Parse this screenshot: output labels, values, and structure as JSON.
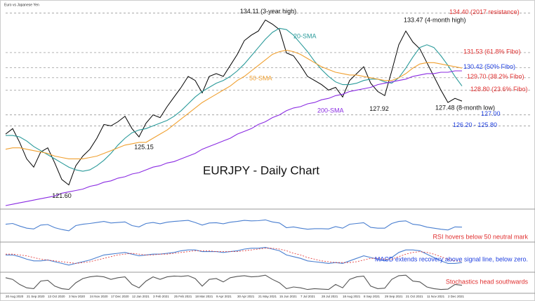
{
  "chart_data": [
    {
      "type": "line",
      "title": "EURJPY - Daily Chart",
      "subtitle": "Euro vs Japanese Yen",
      "color": "#000000",
      "categories": [
        "20 Aug 2020",
        null,
        null,
        "21 Sep 2020",
        null,
        null,
        "13 Oct 2020",
        null,
        null,
        "3 Nov 2020",
        null,
        null,
        "24 Nov 2020",
        null,
        null,
        "17 Dec 2020",
        null,
        null,
        "12 Jan 2021",
        null,
        null,
        "3 Feb 2021",
        null,
        null,
        "25 Feb 2021",
        null,
        null,
        "18 Mar 2021",
        null,
        null,
        "9 Apr 2021",
        null,
        null,
        "30 Apr 2021",
        null,
        null,
        "21 May 2021",
        null,
        null,
        "15 Jun 2021",
        null,
        null,
        "7 Jul 2021",
        null,
        null,
        "28 Jul 2021",
        null,
        null,
        "18 Aug 2021",
        null,
        null,
        "8 Sep 2021",
        null,
        null,
        "29 Sep 2021",
        null,
        null,
        "21 Oct 2021",
        null,
        null,
        "11 Nov 2021",
        null,
        null,
        "2 Dec 2021",
        null,
        null
      ],
      "values": [
        125.6,
        126.0,
        125.0,
        123.8,
        123.2,
        124.3,
        124.6,
        123.5,
        122.3,
        121.9,
        123.3,
        124.0,
        124.5,
        125.3,
        126.3,
        126.2,
        126.5,
        126.9,
        126.0,
        125.4,
        126.4,
        127.0,
        126.8,
        127.6,
        128.3,
        129.0,
        129.8,
        129.5,
        128.6,
        129.8,
        130.0,
        129.8,
        130.6,
        131.4,
        132.4,
        132.8,
        133.1,
        133.9,
        133.6,
        133.2,
        131.5,
        131.3,
        130.6,
        129.8,
        129.5,
        129.2,
        128.8,
        129.0,
        128.3,
        129.5,
        130.0,
        130.5,
        129.3,
        128.7,
        128.4,
        130.2,
        132.1,
        133.1,
        132.3,
        131.8,
        130.8,
        129.8,
        128.8,
        127.9,
        128.2,
        128.0
      ],
      "series": [
        {
          "name": "20-SMA",
          "color": "#2a9a9a",
          "values": [
            125.5,
            125.5,
            125.4,
            125.1,
            124.7,
            124.4,
            124.1,
            123.8,
            123.5,
            123.2,
            123.0,
            122.9,
            123.0,
            123.3,
            123.7,
            124.2,
            124.8,
            125.3,
            125.7,
            125.9,
            126.0,
            126.2,
            126.4,
            126.6,
            126.9,
            127.3,
            127.8,
            128.3,
            128.7,
            129.0,
            129.3,
            129.5,
            129.8,
            130.2,
            130.7,
            131.3,
            131.9,
            132.5,
            133.0,
            133.3,
            133.2,
            132.8,
            132.2,
            131.6,
            130.9,
            130.3,
            129.8,
            129.4,
            129.2,
            129.2,
            129.3,
            129.5,
            129.6,
            129.6,
            129.4,
            129.3,
            129.7,
            130.4,
            131.2,
            131.9,
            132.1,
            131.9,
            131.3,
            130.6,
            129.8,
            129.1
          ]
        },
        {
          "name": "50-SMA",
          "color": "#f0a030",
          "values": [
            124.5,
            124.6,
            124.6,
            124.5,
            124.4,
            124.3,
            124.2,
            124.0,
            123.9,
            123.8,
            123.8,
            123.8,
            123.9,
            124.0,
            124.2,
            124.4,
            124.6,
            124.8,
            124.9,
            125.0,
            125.0,
            125.3,
            125.6,
            125.9,
            126.3,
            126.7,
            127.1,
            127.5,
            127.9,
            128.2,
            128.5,
            128.8,
            129.1,
            129.5,
            129.8,
            130.2,
            130.6,
            131.0,
            131.4,
            131.6,
            131.7,
            131.6,
            131.4,
            131.1,
            130.8,
            130.5,
            130.3,
            130.1,
            130.0,
            129.9,
            129.9,
            129.8,
            129.7,
            129.6,
            129.5,
            129.5,
            129.7,
            130.0,
            130.4,
            130.7,
            130.8,
            130.8,
            130.7,
            130.6,
            130.5,
            130.4
          ]
        },
        {
          "name": "200-SMA",
          "color": "#8a2be2",
          "values": [
            120.4,
            120.5,
            120.6,
            120.7,
            120.8,
            120.9,
            121.0,
            121.1,
            121.3,
            121.4,
            121.5,
            121.6,
            121.8,
            121.9,
            122.1,
            122.2,
            122.4,
            122.5,
            122.7,
            122.8,
            123.0,
            123.2,
            123.3,
            123.5,
            123.6,
            123.8,
            124.0,
            124.2,
            124.5,
            124.7,
            124.9,
            125.1,
            125.3,
            125.6,
            125.8,
            126.0,
            126.3,
            126.5,
            126.8,
            127.0,
            127.3,
            127.5,
            127.6,
            127.8,
            127.9,
            128.1,
            128.2,
            128.4,
            128.5,
            128.7,
            128.8,
            128.9,
            129.0,
            129.2,
            129.3,
            129.4,
            129.5,
            129.6,
            129.8,
            129.9,
            130.0,
            130.0,
            130.1,
            130.1,
            130.2,
            130.2
          ]
        }
      ],
      "levels": [
        {
          "value": 134.4,
          "label": "134.40 (2017 resistance)",
          "color": "#e03030"
        },
        {
          "value": 131.53,
          "label": "131.53 (61.8% Fibo)",
          "color": "#e03030"
        },
        {
          "value": 130.42,
          "label": "130.42 (50% Fibo)",
          "color": "#2040e0"
        },
        {
          "value": 129.7,
          "label": "129.70 (38.2% Fibo)",
          "color": "#e03030"
        },
        {
          "value": 128.8,
          "label": "128.80 (23.6% Fibo)",
          "color": "#e03030"
        },
        {
          "value": 127.0,
          "label": "127.00",
          "color": "#2040e0"
        },
        {
          "value": 126.2,
          "label": "126.20 - 125.80",
          "color": "#2040e0"
        }
      ],
      "annotations": [
        {
          "value": 134.11,
          "label": "134.11 (3-year high)"
        },
        {
          "value": 133.47,
          "label": "133.47 (4-month high)"
        },
        {
          "value": 121.6,
          "label": "121.60"
        },
        {
          "value": 125.15,
          "label": "125.15"
        },
        {
          "value": 127.92,
          "label": "127.92"
        },
        {
          "value": 127.48,
          "label": "127.48 (8-month low)"
        }
      ],
      "ylim": [
        120.3,
        135.1
      ]
    },
    {
      "type": "line",
      "caption": "RSI hovers below 50 neutral mark",
      "caption_color": "#e03030",
      "ylim": [
        0,
        100
      ],
      "series": [
        {
          "color": "#4a7fd0",
          "values": [
            55,
            58,
            48,
            40,
            37,
            52,
            54,
            42,
            35,
            30,
            50,
            55,
            58,
            62,
            66,
            60,
            62,
            64,
            50,
            45,
            58,
            62,
            57,
            63,
            66,
            68,
            70,
            62,
            52,
            60,
            61,
            57,
            63,
            66,
            70,
            68,
            69,
            72,
            64,
            60,
            42,
            45,
            40,
            36,
            38,
            38,
            37,
            46,
            40,
            55,
            58,
            61,
            43,
            40,
            40,
            58,
            66,
            68,
            55,
            52,
            44,
            40,
            36,
            33,
            45,
            44
          ]
        }
      ]
    },
    {
      "type": "line",
      "caption": "MACD extends recovery above signal line, below zero.",
      "caption_color": "#2040e0",
      "ylim": [
        -1.5,
        1.5
      ],
      "series": [
        {
          "color": "#4a7fd0",
          "values": [
            0.3,
            0.3,
            0.1,
            -0.2,
            -0.4,
            -0.4,
            -0.3,
            -0.5,
            -0.7,
            -0.9,
            -0.7,
            -0.5,
            -0.3,
            0.0,
            0.3,
            0.4,
            0.5,
            0.6,
            0.4,
            0.2,
            0.3,
            0.4,
            0.4,
            0.5,
            0.6,
            0.8,
            0.9,
            0.9,
            0.7,
            0.7,
            0.7,
            0.6,
            0.7,
            0.8,
            1.0,
            1.1,
            1.1,
            1.2,
            1.0,
            0.8,
            0.3,
            0.1,
            -0.1,
            -0.4,
            -0.5,
            -0.6,
            -0.7,
            -0.6,
            -0.7,
            -0.4,
            -0.1,
            0.2,
            0.0,
            -0.2,
            -0.4,
            0.0,
            0.6,
            0.9,
            0.9,
            0.8,
            0.4,
            0.0,
            -0.4,
            -0.7,
            -0.7,
            -0.6
          ]
        },
        {
          "color": "#e03030",
          "values": [
            0.4,
            0.4,
            0.3,
            0.2,
            0.0,
            -0.2,
            -0.3,
            -0.4,
            -0.5,
            -0.6,
            -0.7,
            -0.6,
            -0.5,
            -0.3,
            -0.1,
            0.1,
            0.3,
            0.4,
            0.5,
            0.4,
            0.3,
            0.3,
            0.4,
            0.4,
            0.5,
            0.6,
            0.7,
            0.8,
            0.8,
            0.8,
            0.7,
            0.7,
            0.7,
            0.7,
            0.8,
            0.9,
            1.0,
            1.1,
            1.1,
            1.0,
            0.8,
            0.5,
            0.3,
            0.0,
            -0.2,
            -0.4,
            -0.5,
            -0.6,
            -0.6,
            -0.6,
            -0.5,
            -0.3,
            -0.1,
            -0.1,
            -0.2,
            -0.2,
            0.1,
            0.4,
            0.6,
            0.7,
            0.6,
            0.4,
            0.1,
            -0.2,
            -0.4,
            -0.5
          ]
        }
      ]
    },
    {
      "type": "line",
      "caption": "Stochastics head southwards",
      "caption_color": "#e03030",
      "ylim": [
        0,
        100
      ],
      "series": [
        {
          "color": "#555555",
          "values": [
            80,
            70,
            40,
            20,
            15,
            60,
            65,
            30,
            15,
            10,
            50,
            75,
            85,
            90,
            85,
            70,
            80,
            85,
            40,
            20,
            60,
            85,
            70,
            85,
            90,
            88,
            92,
            75,
            30,
            70,
            75,
            55,
            80,
            88,
            92,
            85,
            88,
            95,
            70,
            50,
            15,
            25,
            20,
            10,
            15,
            12,
            10,
            40,
            20,
            70,
            85,
            90,
            30,
            15,
            18,
            70,
            92,
            95,
            60,
            55,
            25,
            15,
            10,
            12,
            40,
            35
          ]
        }
      ]
    }
  ]
}
